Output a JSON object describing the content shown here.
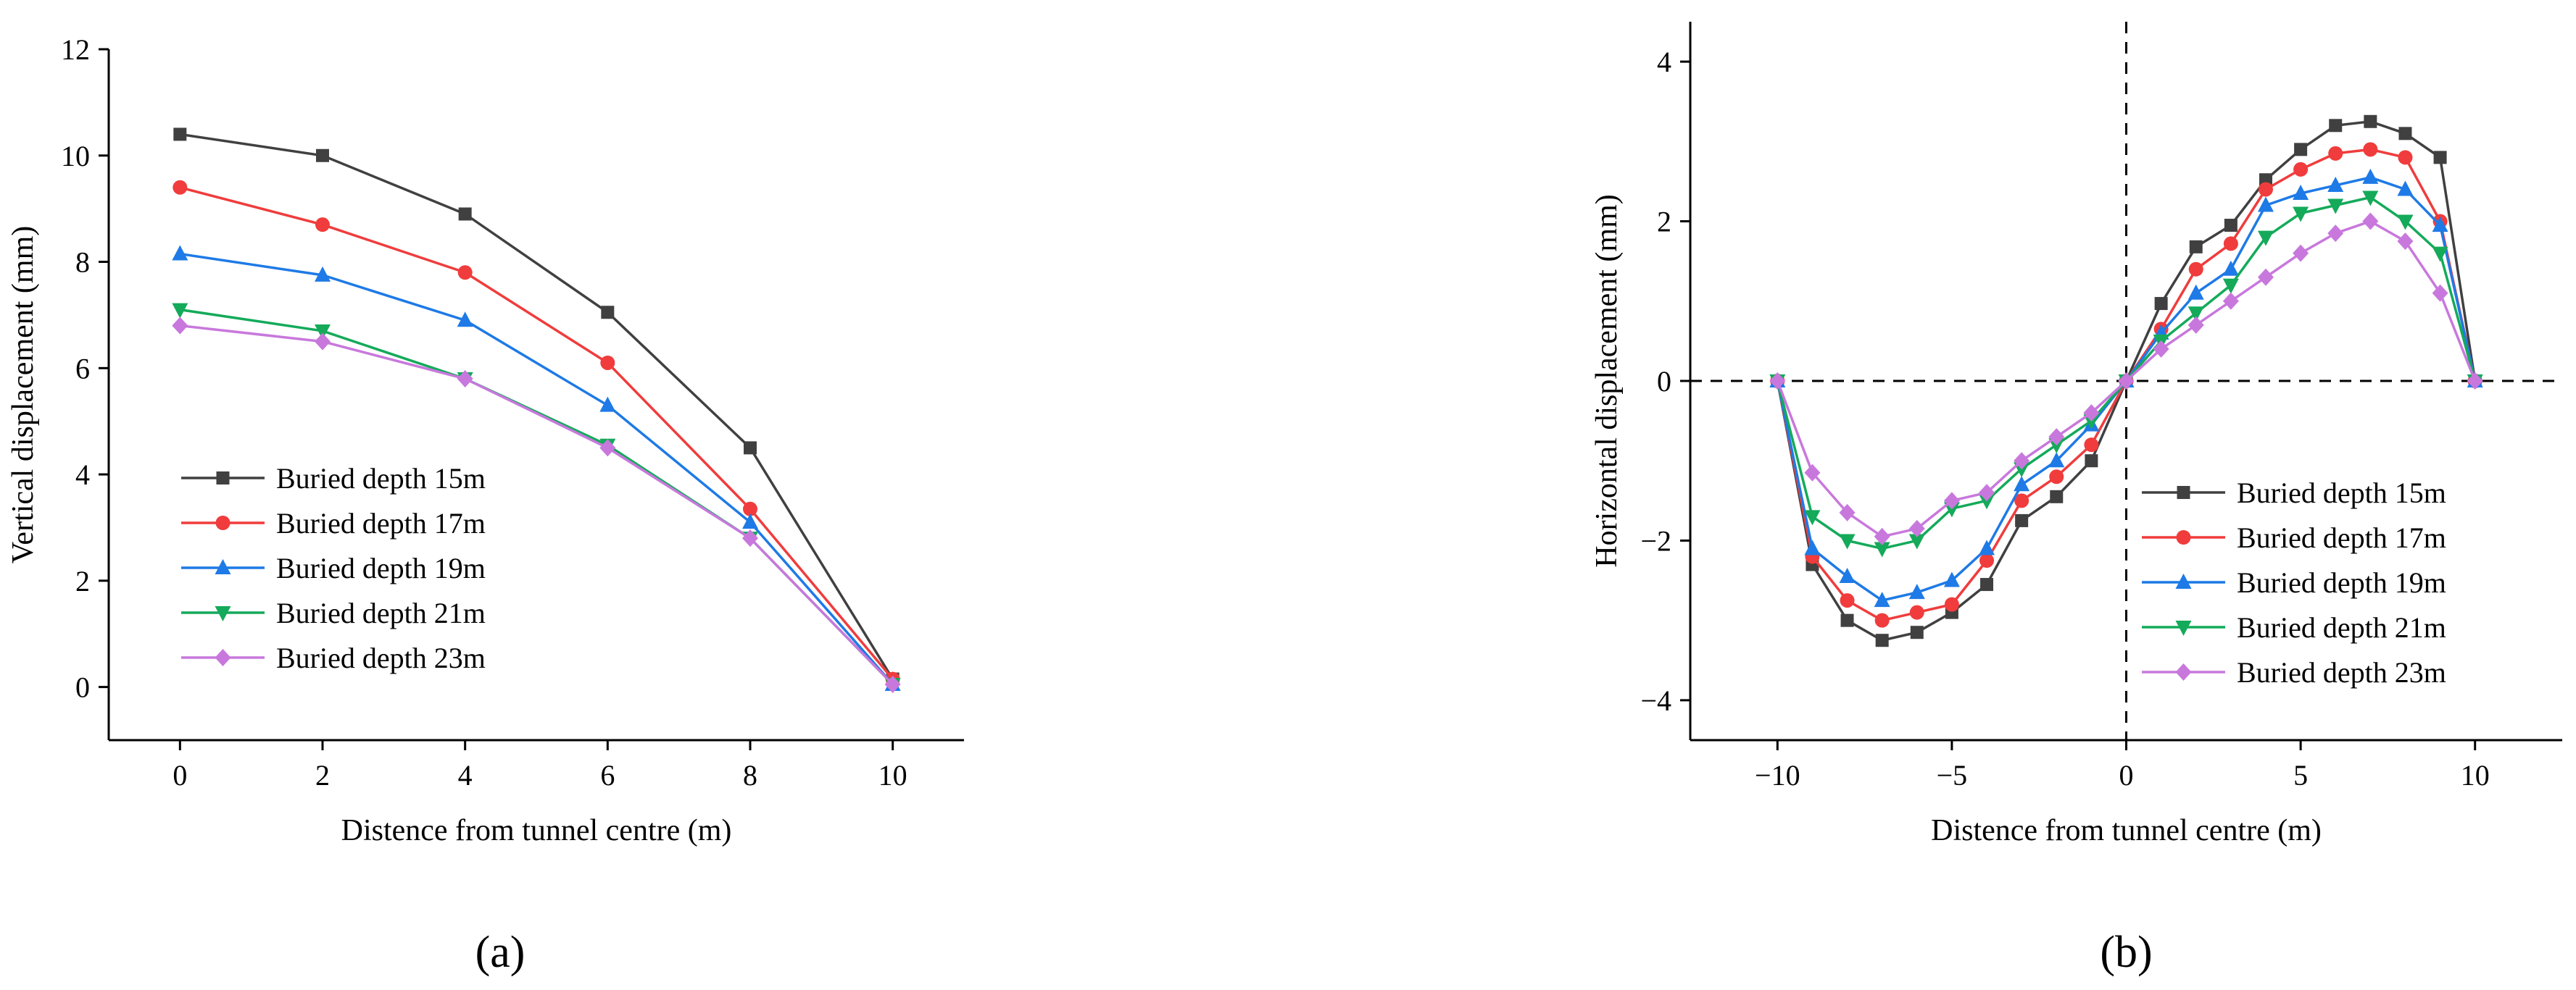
{
  "chart_data": [
    {
      "type": "line",
      "panel_label": "(a)",
      "title": "",
      "xlabel": "Distence from tunnel centre (m)",
      "ylabel": "Vertical displacement (mm)",
      "xlim": [
        -1,
        11
      ],
      "ylim": [
        -1,
        12
      ],
      "xticks": [
        0,
        2,
        4,
        6,
        8,
        10
      ],
      "yticks": [
        0,
        2,
        4,
        6,
        8,
        10,
        12
      ],
      "grid": false,
      "legend_position": "bottom-left",
      "x": [
        0,
        2,
        4,
        6,
        8,
        10
      ],
      "series": [
        {
          "name": "Buried depth 15m",
          "color": "#404040",
          "marker": "square",
          "values": [
            10.4,
            10.0,
            8.9,
            7.05,
            4.5,
            0.15
          ]
        },
        {
          "name": "Buried depth 17m",
          "color": "#f03c3c",
          "marker": "circle",
          "values": [
            9.4,
            8.7,
            7.8,
            6.1,
            3.35,
            0.15
          ]
        },
        {
          "name": "Buried depth 19m",
          "color": "#1e7ae6",
          "marker": "triangle-up",
          "values": [
            8.15,
            7.75,
            6.9,
            5.3,
            3.1,
            0.05
          ]
        },
        {
          "name": "Buried depth 21m",
          "color": "#14aa5a",
          "marker": "triangle-down",
          "values": [
            7.1,
            6.7,
            5.8,
            4.55,
            2.8,
            0.05
          ]
        },
        {
          "name": "Buried depth 23m",
          "color": "#c878dc",
          "marker": "diamond",
          "values": [
            6.8,
            6.5,
            5.8,
            4.5,
            2.8,
            0.05
          ]
        }
      ]
    },
    {
      "type": "line",
      "panel_label": "(b)",
      "title": "",
      "xlabel": "Distence from tunnel centre (m)",
      "ylabel": "Horizontal displacement (mm)",
      "xlim": [
        -12.5,
        12.5
      ],
      "ylim": [
        -4.5,
        4.5
      ],
      "xticks": [
        -10,
        -5,
        0,
        5,
        10
      ],
      "xtick_labels": [
        "−10",
        "−5",
        "0",
        "5",
        "10"
      ],
      "yticks": [
        -4,
        -2,
        0,
        2,
        4
      ],
      "ytick_labels": [
        "−4",
        "−2",
        "0",
        "2",
        "4"
      ],
      "grid": false,
      "reference_lines": [
        "x = 0 (dashed)",
        "y = 0 (dashed)"
      ],
      "legend_position": "bottom-right",
      "x": [
        -10,
        -9,
        -8,
        -7,
        -6,
        -5,
        -4,
        -3,
        -2,
        -1,
        0,
        1,
        2,
        3,
        4,
        5,
        6,
        7,
        8,
        9,
        10
      ],
      "series": [
        {
          "name": "Buried depth 15m",
          "color": "#404040",
          "marker": "square",
          "values": [
            0,
            -2.3,
            -3.0,
            -3.25,
            -3.15,
            -2.9,
            -2.55,
            -1.75,
            -1.45,
            -1.0,
            0,
            0.97,
            1.68,
            1.95,
            2.52,
            2.9,
            3.2,
            3.25,
            3.1,
            2.8,
            0
          ]
        },
        {
          "name": "Buried depth 17m",
          "color": "#f03c3c",
          "marker": "circle",
          "values": [
            0,
            -2.2,
            -2.75,
            -3.0,
            -2.9,
            -2.8,
            -2.25,
            -1.5,
            -1.2,
            -0.8,
            0,
            0.65,
            1.4,
            1.72,
            2.4,
            2.65,
            2.85,
            2.9,
            2.8,
            2.0,
            0
          ]
        },
        {
          "name": "Buried depth 19m",
          "color": "#1e7ae6",
          "marker": "triangle-up",
          "values": [
            0,
            -2.1,
            -2.45,
            -2.75,
            -2.65,
            -2.5,
            -2.1,
            -1.3,
            -1.0,
            -0.55,
            0,
            0.6,
            1.1,
            1.4,
            2.2,
            2.35,
            2.45,
            2.55,
            2.4,
            1.95,
            0
          ]
        },
        {
          "name": "Buried depth 21m",
          "color": "#14aa5a",
          "marker": "triangle-down",
          "values": [
            0,
            -1.7,
            -2.0,
            -2.1,
            -2.0,
            -1.6,
            -1.5,
            -1.1,
            -0.8,
            -0.5,
            0,
            0.5,
            0.85,
            1.2,
            1.8,
            2.1,
            2.2,
            2.3,
            2.0,
            1.6,
            0
          ]
        },
        {
          "name": "Buried depth 23m",
          "color": "#c878dc",
          "marker": "diamond",
          "values": [
            0,
            -1.15,
            -1.65,
            -1.95,
            -1.85,
            -1.5,
            -1.4,
            -1.0,
            -0.7,
            -0.4,
            0,
            0.4,
            0.7,
            1.0,
            1.3,
            1.6,
            1.85,
            2.0,
            1.75,
            1.1,
            0
          ]
        }
      ]
    }
  ]
}
